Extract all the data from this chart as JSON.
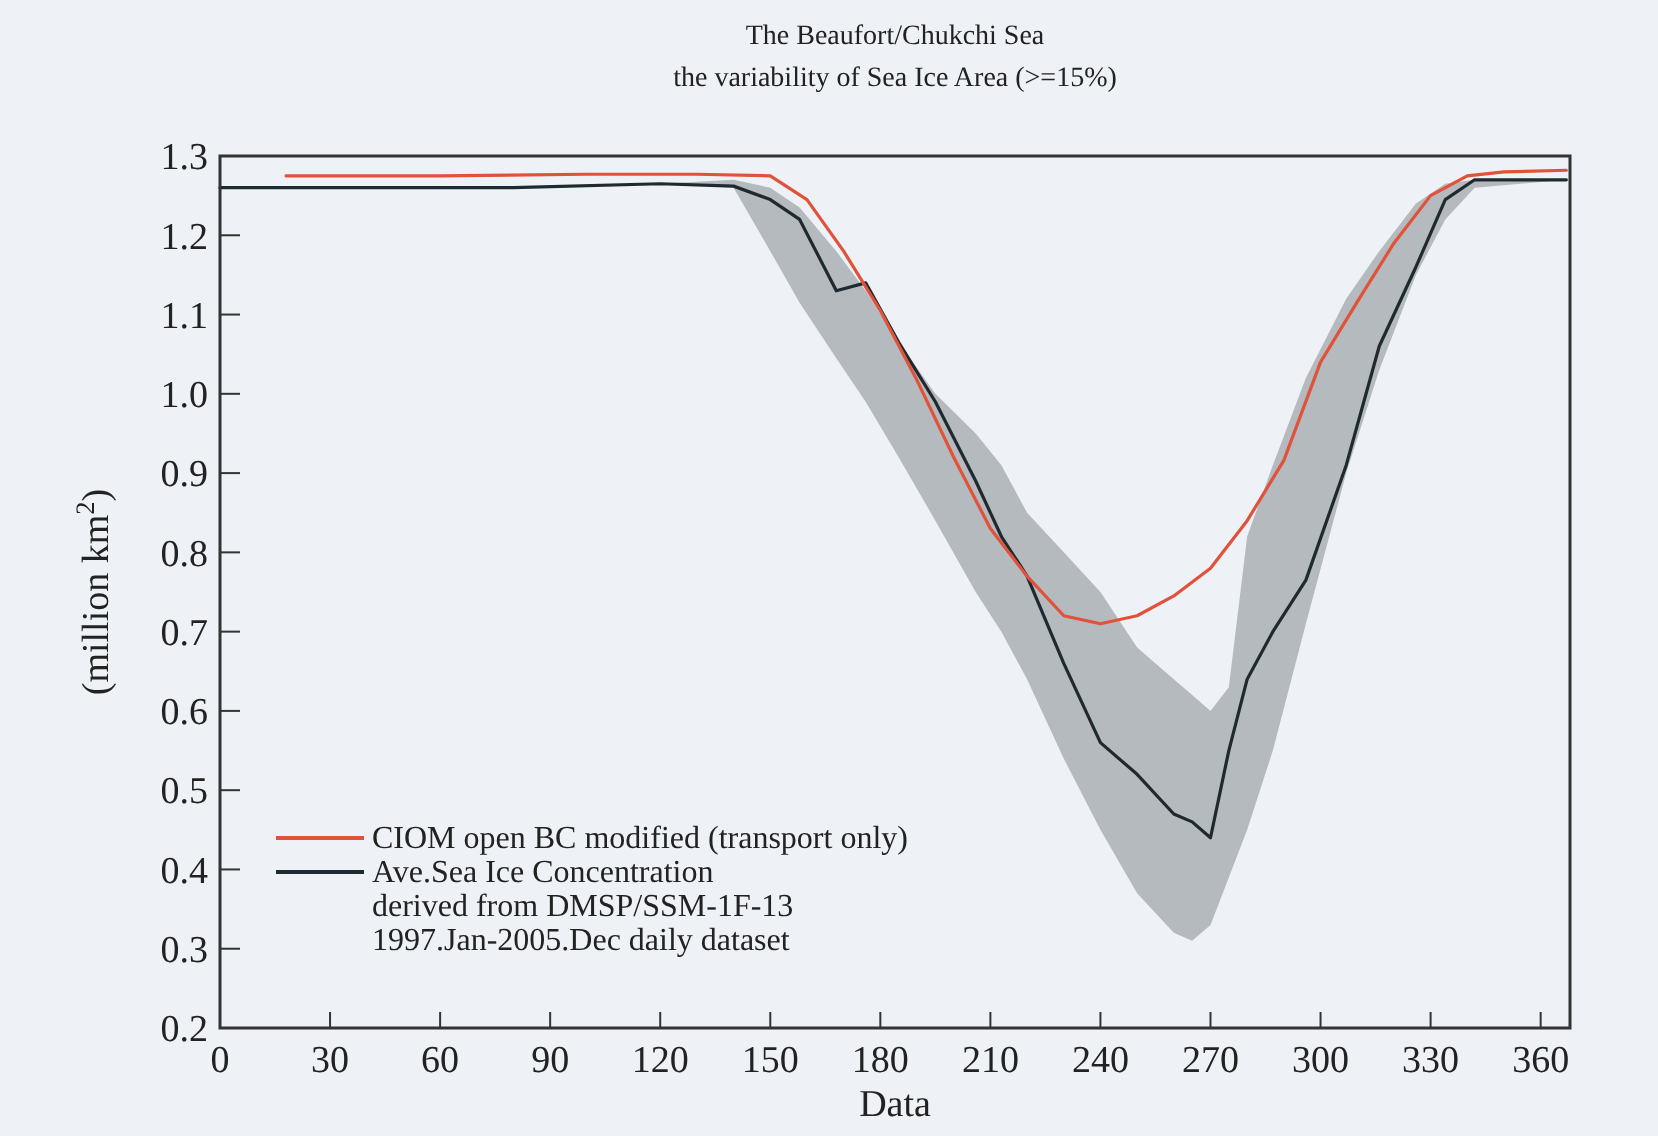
{
  "chart_data": {
    "type": "line",
    "title": "The Beaufort/Chukchi Sea",
    "subtitle": "the variability of Sea Ice Area (>=15%)",
    "xlabel": "Data",
    "ylabel": "(million km$^{2}$)",
    "xlim": [
      0,
      368
    ],
    "xticks": [
      0,
      30,
      60,
      90,
      120,
      150,
      180,
      210,
      240,
      270,
      300,
      330,
      360
    ],
    "ylim": [
      0.2,
      1.3
    ],
    "yticks": [
      0.2,
      0.3,
      0.4,
      0.5,
      0.6,
      0.7,
      0.8,
      0.9,
      {
        "value": 1,
        "label": "1.0"
      },
      1.1,
      1.2,
      1.3
    ],
    "legend": "bottom left",
    "grid": false,
    "line_style": "solid",
    "marker": "none",
    "series": [
      {
        "name": "CIOM open BC modified (transport only)",
        "color": "#e0523a",
        "x": [
          18,
          60,
          100,
          130,
          150,
          160,
          170,
          180,
          190,
          200,
          210,
          220,
          230,
          240,
          250,
          260,
          270,
          280,
          290,
          300,
          310,
          320,
          330,
          340,
          350,
          367
        ],
        "values": [
          1.275,
          1.275,
          1.277,
          1.277,
          1.275,
          1.245,
          1.18,
          1.105,
          1.017,
          0.92,
          0.83,
          0.77,
          0.72,
          0.71,
          0.72,
          0.745,
          0.78,
          0.84,
          0.916,
          1.04,
          1.116,
          1.19,
          1.25,
          1.275,
          1.28,
          1.282
        ]
      },
      {
        "name": "Ave.Sea Ice Concentration\nderived from DMSP/SSM-1F-13\n1997.Jan-2005.Dec daily dataset",
        "color": "#1f2a30",
        "x": [
          0,
          40,
          80,
          120,
          140,
          150,
          158,
          168,
          176,
          185,
          195,
          206,
          213,
          220,
          230,
          240,
          250,
          260,
          265,
          270,
          275,
          280,
          287,
          296,
          307,
          316,
          326,
          334,
          342,
          367
        ],
        "values": [
          1.26,
          1.26,
          1.26,
          1.265,
          1.262,
          1.245,
          1.22,
          1.13,
          1.14,
          1.065,
          0.99,
          0.89,
          0.82,
          0.77,
          0.66,
          0.56,
          0.52,
          0.47,
          0.46,
          0.44,
          0.55,
          0.64,
          0.7,
          0.765,
          0.91,
          1.06,
          1.16,
          1.245,
          1.27,
          1.27
        ],
        "lower": [
          1.26,
          1.26,
          1.26,
          1.265,
          1.26,
          1.18,
          1.115,
          1.045,
          0.99,
          0.92,
          0.84,
          0.75,
          0.7,
          0.64,
          0.54,
          0.45,
          0.37,
          0.32,
          0.31,
          0.33,
          0.39,
          0.45,
          0.55,
          0.71,
          0.9,
          1.03,
          1.15,
          1.22,
          1.26,
          1.27
        ],
        "upper": [
          1.26,
          1.26,
          1.26,
          1.265,
          1.27,
          1.26,
          1.235,
          1.18,
          1.13,
          1.065,
          1.0,
          0.95,
          0.91,
          0.85,
          0.8,
          0.75,
          0.68,
          0.64,
          0.62,
          0.6,
          0.63,
          0.82,
          0.91,
          1.02,
          1.12,
          1.18,
          1.24,
          1.265,
          1.27,
          1.27
        ]
      }
    ]
  }
}
